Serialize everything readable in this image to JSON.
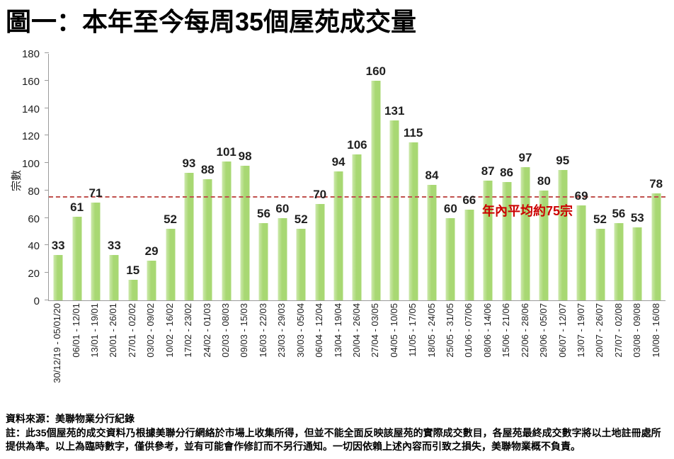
{
  "page": {
    "title": "圖一：本年至今每周35個屋苑成交量"
  },
  "chart_data": {
    "type": "bar",
    "title": "圖一：本年至今每周35個屋苑成交量",
    "xlabel": "",
    "ylabel": "宗數",
    "ylim": [
      0,
      180
    ],
    "ytick_step": 20,
    "grid": false,
    "legend_position": "none",
    "categories": [
      "30/12/19 - 05/01/20",
      "06/01 - 12/01",
      "13/01 - 19/01",
      "20/01 - 26/01",
      "27/01 - 02/02",
      "03/02 - 09/02",
      "10/02 - 16/02",
      "17/02 - 23/02",
      "24/02 - 01/03",
      "02/03 - 08/03",
      "09/03 - 15/03",
      "16/03 - 22/03",
      "23/03 - 29/03",
      "30/03 - 05/04",
      "06/04 - 12/04",
      "13/04 - 19/04",
      "20/04 - 26/04",
      "27/04 - 03/05",
      "04/05 - 10/05",
      "11/05 - 17/05",
      "18/05 - 24/05",
      "25/05 - 31/05",
      "01/06 - 07/06",
      "08/06 - 14/06",
      "15/06 - 21/06",
      "22/06 - 28/06",
      "29/06 - 05/07",
      "06/07 - 12/07",
      "13/07 - 19/07",
      "20/07 - 26/07",
      "27/07 - 02/08",
      "03/08 - 09/08",
      "10/08 - 16/08"
    ],
    "values": [
      33,
      61,
      71,
      33,
      15,
      29,
      52,
      93,
      88,
      101,
      98,
      56,
      60,
      52,
      70,
      94,
      106,
      160,
      131,
      115,
      84,
      60,
      66,
      87,
      86,
      97,
      80,
      95,
      69,
      52,
      56,
      53,
      78
    ],
    "average_line": {
      "value": 75,
      "label": "年內平均約75宗"
    },
    "colors": {
      "bar": "#a8d873",
      "bar_light": "#cde9ac",
      "avg_line": "#c0504d",
      "avg_label": "#cc0000",
      "axis": "#9a9a9a",
      "text": "#1f1f1f"
    }
  },
  "footer": {
    "source": "資料來源：美聯物業分行紀錄",
    "note": "註：此35個屋苑的成交資料乃根據美聯分行網絡於市場上收集所得，但並不能全面反映該屋苑的實際成交數目，各屋苑最終成交數字將以土地註冊處所提供為準。以上為臨時數字，僅供參考，並有可能會作修訂而不另行通知。一切因依賴上述內容而引致之損失，美聯物業概不負責。"
  }
}
